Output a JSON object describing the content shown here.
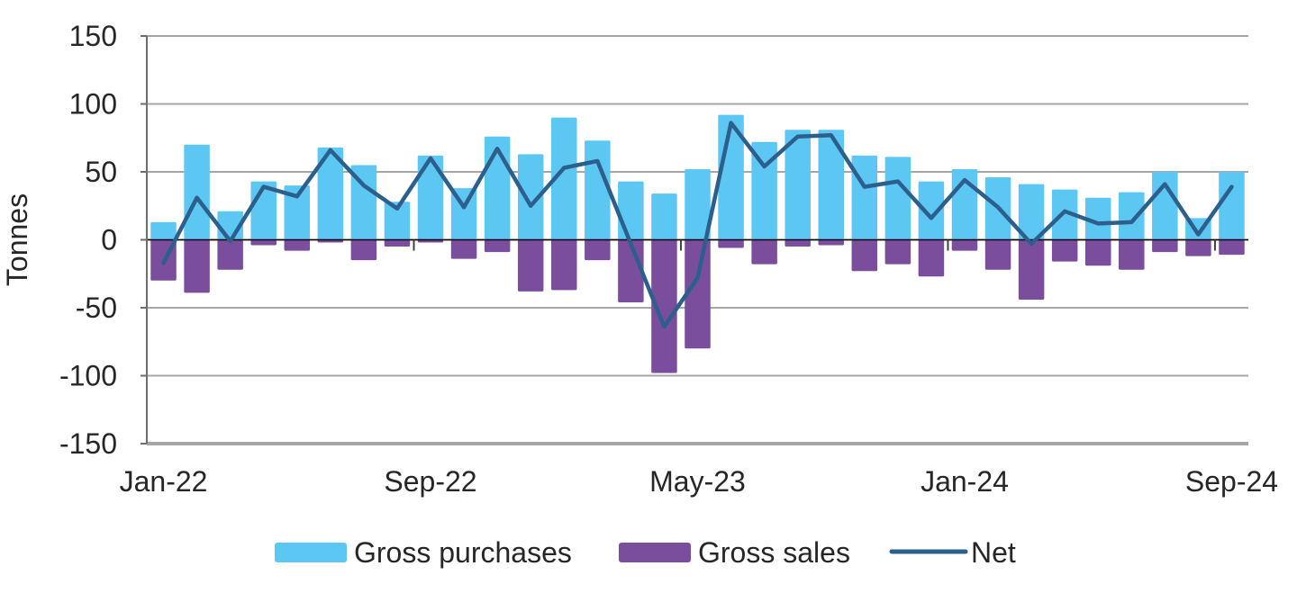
{
  "chart_data": {
    "type": "combo-bar-line",
    "title": "",
    "ylabel": "Tonnes",
    "ylim": [
      -150,
      150
    ],
    "yticks": [
      150,
      100,
      50,
      0,
      -50,
      -100,
      -150
    ],
    "grid": true,
    "legend_position": "bottom",
    "categories": [
      "Jan-22",
      "Feb-22",
      "Mar-22",
      "Apr-22",
      "May-22",
      "Jun-22",
      "Jul-22",
      "Aug-22",
      "Sep-22",
      "Oct-22",
      "Nov-22",
      "Dec-22",
      "Jan-23",
      "Feb-23",
      "Mar-23",
      "Apr-23",
      "May-23",
      "Jun-23",
      "Jul-23",
      "Aug-23",
      "Sep-23",
      "Oct-23",
      "Nov-23",
      "Dec-23",
      "Jan-24",
      "Feb-24",
      "Mar-24",
      "Apr-24",
      "May-24",
      "Jun-24",
      "Jul-24",
      "Aug-24",
      "Sep-24"
    ],
    "xtick_shown": [
      {
        "index": 0,
        "label": "Jan-22"
      },
      {
        "index": 8,
        "label": "Sep-22"
      },
      {
        "index": 16,
        "label": "May-23"
      },
      {
        "index": 24,
        "label": "Jan-24"
      },
      {
        "index": 32,
        "label": "Sep-24"
      }
    ],
    "series": [
      {
        "name": "Gross purchases",
        "kind": "bar",
        "color": "#5BC7F2",
        "values": [
          13,
          70,
          21,
          43,
          40,
          68,
          55,
          28,
          62,
          38,
          76,
          63,
          90,
          73,
          43,
          34,
          52,
          92,
          72,
          81,
          81,
          62,
          61,
          43,
          52,
          46,
          41,
          37,
          31,
          35,
          50,
          16,
          50
        ]
      },
      {
        "name": "Gross sales",
        "kind": "bar",
        "color": "#7A4E9C",
        "values": [
          -30,
          -39,
          -22,
          -4,
          -8,
          -2,
          -15,
          -5,
          -2,
          -14,
          -9,
          -38,
          -37,
          -15,
          -46,
          -98,
          -80,
          -6,
          -18,
          -5,
          -4,
          -23,
          -18,
          -27,
          -8,
          -22,
          -44,
          -16,
          -19,
          -22,
          -9,
          -12,
          -11
        ]
      },
      {
        "name": "Net",
        "kind": "line",
        "color": "#2C5F8B",
        "values": [
          -17,
          31,
          -1,
          39,
          32,
          66,
          40,
          23,
          60,
          24,
          67,
          25,
          53,
          58,
          -3,
          -64,
          -28,
          86,
          54,
          76,
          77,
          39,
          43,
          16,
          44,
          24,
          -3,
          21,
          12,
          13,
          41,
          4,
          39
        ]
      }
    ],
    "colors": {
      "grid": "#A6A6A6",
      "axis": "#6E6E6E",
      "zero_line": "#000000",
      "category_tick": "#404040",
      "text": "#262626",
      "background": "#FFFFFF"
    }
  }
}
